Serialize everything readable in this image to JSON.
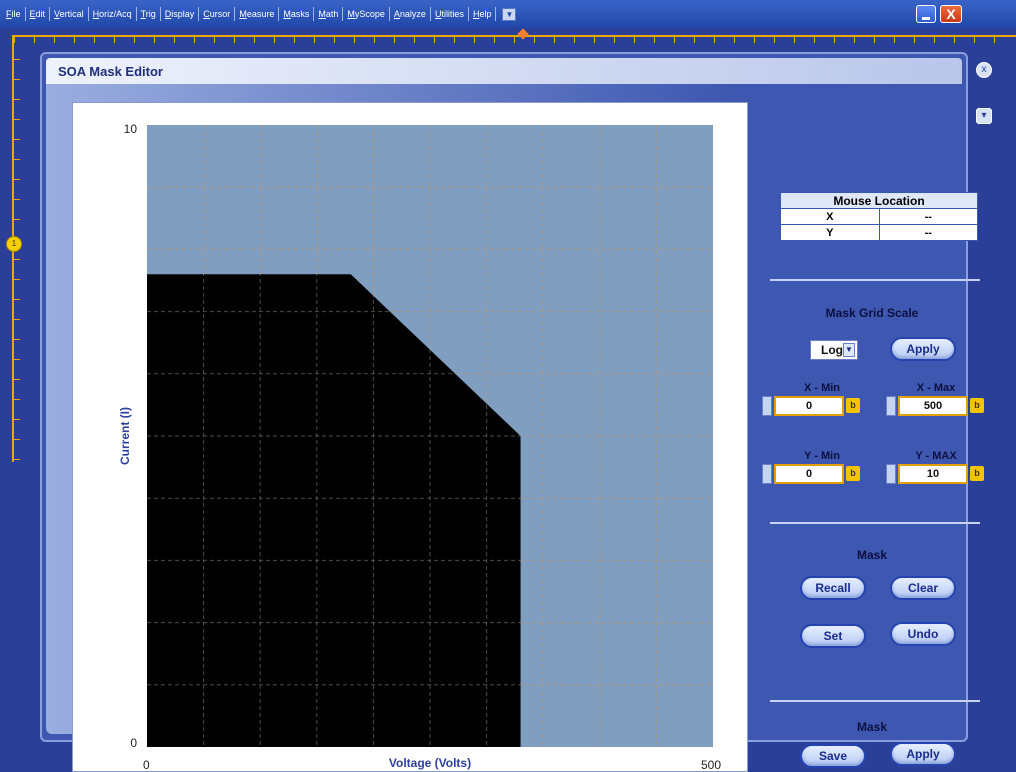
{
  "menubar": {
    "items": [
      "File",
      "Edit",
      "Vertical",
      "Horiz/Acq",
      "Trig",
      "Display",
      "Cursor",
      "Measure",
      "Masks",
      "Math",
      "MyScope",
      "Analyze",
      "Utilities",
      "Help"
    ],
    "dropdown_glyph": "▼",
    "close_glyph": "X"
  },
  "scope": {
    "channel_marker": "1"
  },
  "dialog": {
    "title": "SOA Mask Editor",
    "close_glyph": "x",
    "dock_glyph": "▾"
  },
  "chart_data": {
    "type": "area",
    "title": "",
    "xlabel": "Voltage (Volts)",
    "ylabel": "Current (I)",
    "xlim": [
      0,
      500
    ],
    "ylim": [
      0,
      10
    ],
    "x_ticks": [
      "0",
      "500"
    ],
    "y_ticks": [
      "0",
      "10"
    ],
    "grid": true,
    "mask_polygon": [
      {
        "x": 0,
        "y": 0
      },
      {
        "x": 0,
        "y": 7.6
      },
      {
        "x": 180,
        "y": 7.6
      },
      {
        "x": 330,
        "y": 5.0
      },
      {
        "x": 330,
        "y": 0
      }
    ],
    "colors": {
      "plot_background": "#7f9ec0",
      "mask_fill": "#000000",
      "grid": "#c8a890"
    }
  },
  "mouse_location": {
    "header": "Mouse Location",
    "rows": [
      {
        "axis": "X",
        "value": "--"
      },
      {
        "axis": "Y",
        "value": "--"
      }
    ]
  },
  "grid_scale": {
    "title": "Mask Grid Scale",
    "selected": "Log",
    "apply_label": "Apply"
  },
  "fields": {
    "x_min": {
      "label": "X - Min",
      "value": "0"
    },
    "x_max": {
      "label": "X - Max",
      "value": "500"
    },
    "y_min": {
      "label": "Y - Min",
      "value": "0"
    },
    "y_max": {
      "label": "Y - MAX",
      "value": "10"
    },
    "icon_glyph": "b"
  },
  "mask_section": {
    "title": "Mask",
    "recall_label": "Recall",
    "clear_label": "Clear",
    "set_label": "Set",
    "undo_label": "Undo"
  },
  "mask_save_section": {
    "title": "Mask",
    "save_label": "Save",
    "apply_label": "Apply"
  }
}
